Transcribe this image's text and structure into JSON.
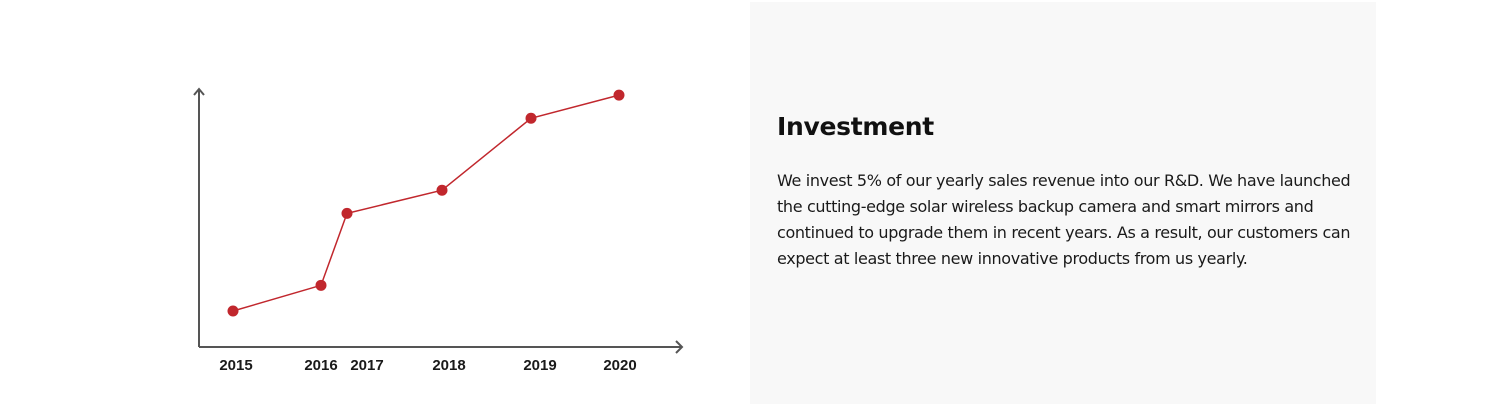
{
  "chart_data": {
    "type": "line",
    "title": "",
    "xlabel": "",
    "ylabel": "",
    "categories": [
      "2015",
      "2016",
      "2017",
      "2018",
      "2019",
      "2020"
    ],
    "values": [
      14,
      24,
      52,
      61,
      89,
      98
    ],
    "ylim": [
      0,
      100
    ],
    "grid": false,
    "series_color": "#c1272d",
    "axis_color": "#555555"
  },
  "section": {
    "title": "Investment",
    "body": "We invest 5% of our yearly sales revenue into our R&D. We have launched the cutting-edge solar wireless backup camera and smart mirrors and continued to upgrade them in recent years. As a result, our customers can expect at least three new innovative products from us yearly."
  }
}
